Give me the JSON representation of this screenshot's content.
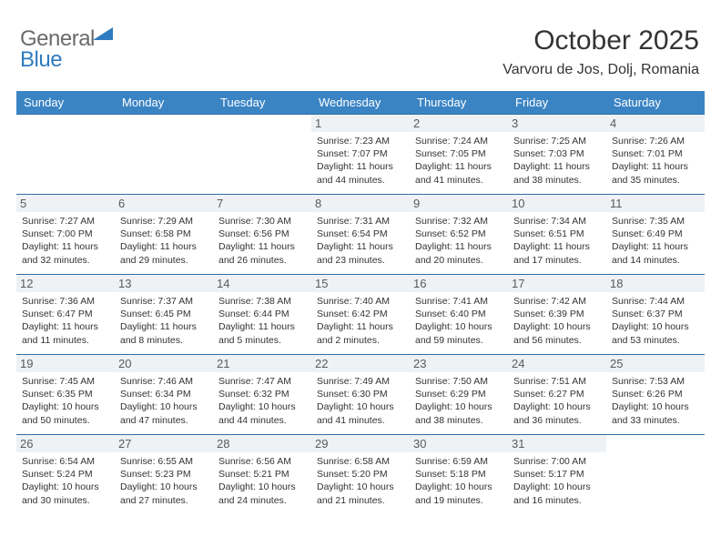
{
  "logo": {
    "word1": "General",
    "word2": "Blue"
  },
  "title": "October 2025",
  "location": "Varvoru de Jos, Dolj, Romania",
  "colors": {
    "header_bg": "#3b84c4",
    "header_text": "#ffffff",
    "day_rule": "#2f6fa8",
    "daynum_bg": "#eef2f5",
    "logo_gray": "#6b6b6b",
    "logo_blue": "#2f7bbf",
    "text": "#333333",
    "page_bg": "#ffffff"
  },
  "weekday_labels": [
    "Sunday",
    "Monday",
    "Tuesday",
    "Wednesday",
    "Thursday",
    "Friday",
    "Saturday"
  ],
  "weeks": [
    [
      null,
      null,
      null,
      {
        "n": "1",
        "sr": "7:23 AM",
        "ss": "7:07 PM",
        "dl": "11 hours and 44 minutes."
      },
      {
        "n": "2",
        "sr": "7:24 AM",
        "ss": "7:05 PM",
        "dl": "11 hours and 41 minutes."
      },
      {
        "n": "3",
        "sr": "7:25 AM",
        "ss": "7:03 PM",
        "dl": "11 hours and 38 minutes."
      },
      {
        "n": "4",
        "sr": "7:26 AM",
        "ss": "7:01 PM",
        "dl": "11 hours and 35 minutes."
      }
    ],
    [
      {
        "n": "5",
        "sr": "7:27 AM",
        "ss": "7:00 PM",
        "dl": "11 hours and 32 minutes."
      },
      {
        "n": "6",
        "sr": "7:29 AM",
        "ss": "6:58 PM",
        "dl": "11 hours and 29 minutes."
      },
      {
        "n": "7",
        "sr": "7:30 AM",
        "ss": "6:56 PM",
        "dl": "11 hours and 26 minutes."
      },
      {
        "n": "8",
        "sr": "7:31 AM",
        "ss": "6:54 PM",
        "dl": "11 hours and 23 minutes."
      },
      {
        "n": "9",
        "sr": "7:32 AM",
        "ss": "6:52 PM",
        "dl": "11 hours and 20 minutes."
      },
      {
        "n": "10",
        "sr": "7:34 AM",
        "ss": "6:51 PM",
        "dl": "11 hours and 17 minutes."
      },
      {
        "n": "11",
        "sr": "7:35 AM",
        "ss": "6:49 PM",
        "dl": "11 hours and 14 minutes."
      }
    ],
    [
      {
        "n": "12",
        "sr": "7:36 AM",
        "ss": "6:47 PM",
        "dl": "11 hours and 11 minutes."
      },
      {
        "n": "13",
        "sr": "7:37 AM",
        "ss": "6:45 PM",
        "dl": "11 hours and 8 minutes."
      },
      {
        "n": "14",
        "sr": "7:38 AM",
        "ss": "6:44 PM",
        "dl": "11 hours and 5 minutes."
      },
      {
        "n": "15",
        "sr": "7:40 AM",
        "ss": "6:42 PM",
        "dl": "11 hours and 2 minutes."
      },
      {
        "n": "16",
        "sr": "7:41 AM",
        "ss": "6:40 PM",
        "dl": "10 hours and 59 minutes."
      },
      {
        "n": "17",
        "sr": "7:42 AM",
        "ss": "6:39 PM",
        "dl": "10 hours and 56 minutes."
      },
      {
        "n": "18",
        "sr": "7:44 AM",
        "ss": "6:37 PM",
        "dl": "10 hours and 53 minutes."
      }
    ],
    [
      {
        "n": "19",
        "sr": "7:45 AM",
        "ss": "6:35 PM",
        "dl": "10 hours and 50 minutes."
      },
      {
        "n": "20",
        "sr": "7:46 AM",
        "ss": "6:34 PM",
        "dl": "10 hours and 47 minutes."
      },
      {
        "n": "21",
        "sr": "7:47 AM",
        "ss": "6:32 PM",
        "dl": "10 hours and 44 minutes."
      },
      {
        "n": "22",
        "sr": "7:49 AM",
        "ss": "6:30 PM",
        "dl": "10 hours and 41 minutes."
      },
      {
        "n": "23",
        "sr": "7:50 AM",
        "ss": "6:29 PM",
        "dl": "10 hours and 38 minutes."
      },
      {
        "n": "24",
        "sr": "7:51 AM",
        "ss": "6:27 PM",
        "dl": "10 hours and 36 minutes."
      },
      {
        "n": "25",
        "sr": "7:53 AM",
        "ss": "6:26 PM",
        "dl": "10 hours and 33 minutes."
      }
    ],
    [
      {
        "n": "26",
        "sr": "6:54 AM",
        "ss": "5:24 PM",
        "dl": "10 hours and 30 minutes."
      },
      {
        "n": "27",
        "sr": "6:55 AM",
        "ss": "5:23 PM",
        "dl": "10 hours and 27 minutes."
      },
      {
        "n": "28",
        "sr": "6:56 AM",
        "ss": "5:21 PM",
        "dl": "10 hours and 24 minutes."
      },
      {
        "n": "29",
        "sr": "6:58 AM",
        "ss": "5:20 PM",
        "dl": "10 hours and 21 minutes."
      },
      {
        "n": "30",
        "sr": "6:59 AM",
        "ss": "5:18 PM",
        "dl": "10 hours and 19 minutes."
      },
      {
        "n": "31",
        "sr": "7:00 AM",
        "ss": "5:17 PM",
        "dl": "10 hours and 16 minutes."
      },
      null
    ]
  ],
  "labels": {
    "sunrise": "Sunrise: ",
    "sunset": "Sunset: ",
    "daylight": "Daylight: "
  }
}
